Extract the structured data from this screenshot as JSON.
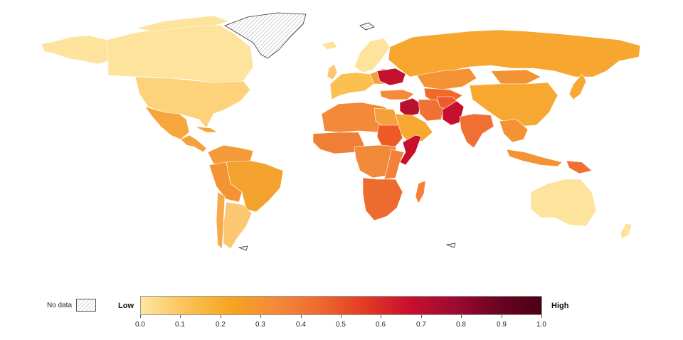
{
  "map": {
    "type": "choropleth",
    "projection": "world",
    "no_data_color": "hatched",
    "highlighted_high_regions": [
      "Iraq",
      "Pakistan",
      "Somalia",
      "Ukraine"
    ]
  },
  "legend": {
    "no_data_label": "No data",
    "low_label": "Low",
    "high_label": "High",
    "ticks": [
      "0.0",
      "0.1",
      "0.2",
      "0.3",
      "0.4",
      "0.5",
      "0.6",
      "0.7",
      "0.8",
      "0.9",
      "1.0"
    ],
    "scale_range": [
      0,
      1
    ],
    "colors": [
      "#fde7a0",
      "#fbc259",
      "#f7a520",
      "#f48a3a",
      "#ee6a2f",
      "#e33c24",
      "#c8102e",
      "#a00a30",
      "#6d0424",
      "#4a0014"
    ]
  }
}
